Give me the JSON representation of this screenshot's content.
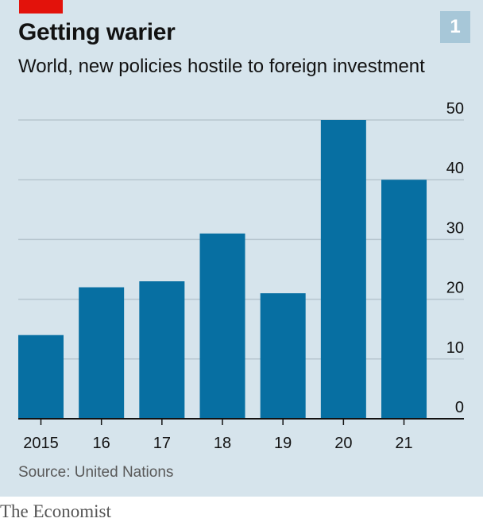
{
  "header": {
    "chart_number": "1",
    "title": "Getting warier",
    "subtitle": "World, new policies hostile to foreign investment"
  },
  "footer": {
    "source": "Source: United Nations",
    "brand": "The Economist"
  },
  "colors": {
    "background": "#d6e4ec",
    "bar": "#076fa2",
    "accent": "#e3120b",
    "grid": "#b7c6cf",
    "baseline": "#121212"
  },
  "chart_data": {
    "type": "bar",
    "categories": [
      "2015",
      "16",
      "17",
      "18",
      "19",
      "20",
      "21"
    ],
    "values": [
      14,
      22,
      23,
      31,
      21,
      50,
      40
    ],
    "ylim": [
      0,
      50
    ],
    "yticks": [
      "0",
      "10",
      "20",
      "30",
      "40",
      "50"
    ],
    "title": "Getting warier",
    "subtitle": "World, new policies hostile to foreign investment",
    "y_axis_side": "right",
    "grid": true
  }
}
